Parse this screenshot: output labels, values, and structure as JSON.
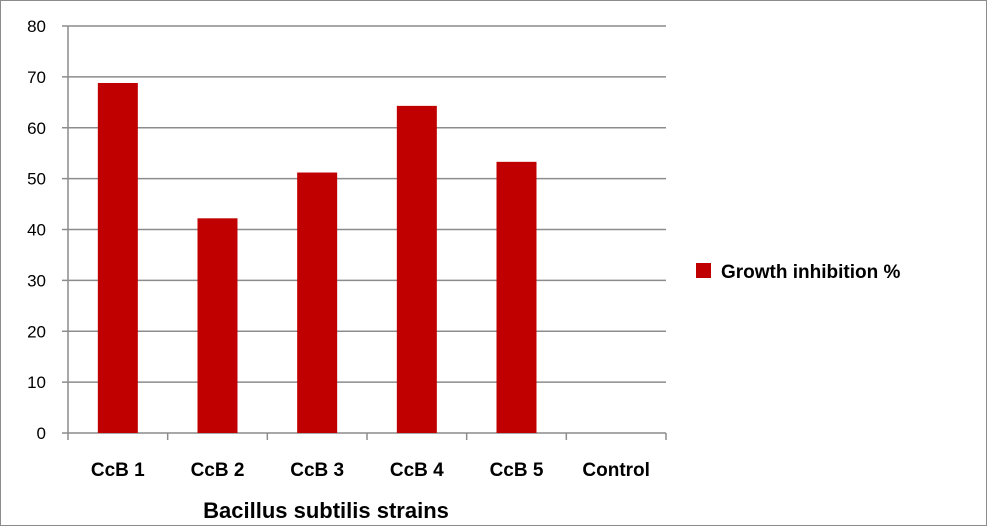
{
  "chart_data": {
    "type": "bar",
    "title": "",
    "xlabel": "Bacillus  subtilis strains",
    "ylabel": "",
    "categories": [
      "CcB 1",
      "CcB 2",
      "CcB 3",
      "CcB 4",
      "CcB 5",
      "Control"
    ],
    "series": [
      {
        "name": "Growth inhibition %",
        "values": [
          68.8,
          42.2,
          51.2,
          64.3,
          53.3,
          0
        ],
        "color": "#c00000"
      }
    ],
    "ylim": [
      0,
      80
    ],
    "yticks": [
      "0",
      "10",
      "20",
      "30",
      "40",
      "50",
      "60",
      "70",
      "80"
    ],
    "grid": true,
    "legend_position": "right"
  }
}
